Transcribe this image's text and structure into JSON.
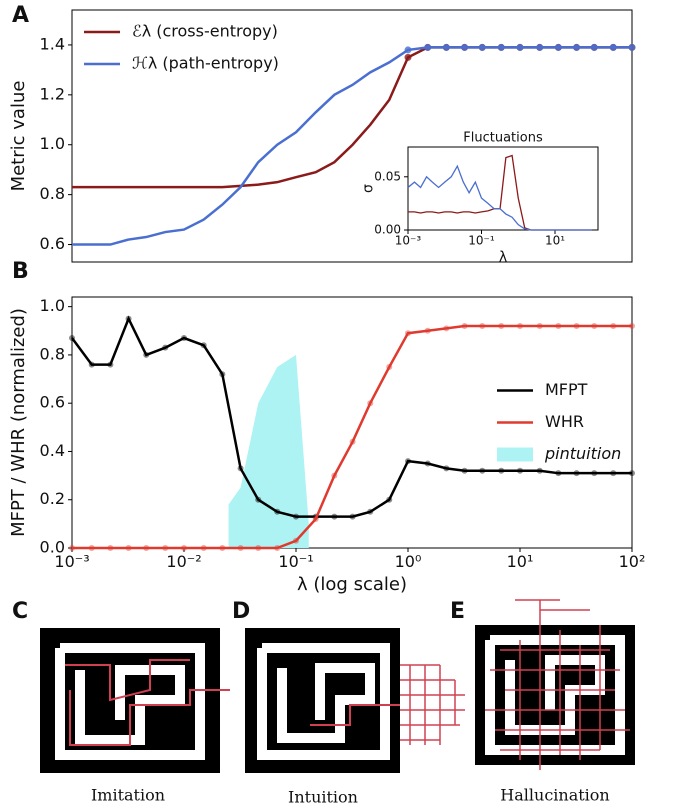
{
  "panel_labels": [
    "A",
    "B",
    "C",
    "D",
    "E"
  ],
  "captions": [
    "Imitation",
    "Intuition",
    "Hallucination"
  ],
  "chart_data": [
    {
      "type": "line",
      "xscale": "log",
      "ylabel": "Metric value",
      "legend": "upper left",
      "xlim": [
        0.001,
        100
      ],
      "ylim": [
        0.53,
        1.54
      ],
      "yticks": [
        0.6,
        0.8,
        {
          "value": 1.0,
          "label": "1.0"
        },
        1.2,
        1.4
      ],
      "x": [
        0.001,
        0.0015,
        0.0022,
        0.0032,
        0.0046,
        0.0068,
        0.01,
        0.015,
        0.022,
        0.032,
        0.046,
        0.068,
        0.1,
        0.15,
        0.22,
        0.32,
        0.46,
        0.68,
        1,
        1.5,
        2.2,
        3.2,
        4.6,
        6.8,
        10,
        15,
        22,
        32,
        46,
        68,
        100
      ],
      "series": [
        {
          "name": "ℰλ (cross-entropy)",
          "color": "#8b1a1a",
          "values": [
            0.83,
            0.83,
            0.83,
            0.83,
            0.83,
            0.83,
            0.83,
            0.83,
            0.83,
            0.835,
            0.84,
            0.85,
            0.87,
            0.89,
            0.93,
            1.0,
            1.08,
            1.18,
            1.35,
            1.39,
            1.39,
            1.39,
            1.39,
            1.39,
            1.39,
            1.39,
            1.39,
            1.39,
            1.39,
            1.39,
            1.39
          ]
        },
        {
          "name": "ℋλ (path-entropy)",
          "color": "#4a6fd0",
          "values": [
            0.6,
            0.6,
            0.6,
            0.62,
            0.63,
            0.65,
            0.66,
            0.7,
            0.76,
            0.83,
            0.93,
            1.0,
            1.05,
            1.13,
            1.2,
            1.24,
            1.29,
            1.33,
            1.38,
            1.39,
            1.39,
            1.39,
            1.39,
            1.39,
            1.39,
            1.39,
            1.39,
            1.39,
            1.39,
            1.39,
            1.39
          ]
        }
      ]
    },
    {
      "type": "line",
      "xscale": "log",
      "title": "Fluctuations",
      "xlabel": "λ",
      "ylabel": "σ",
      "xlim": [
        0.001,
        148
      ],
      "ylim": [
        0,
        0.078
      ],
      "xticks": [
        {
          "value": 0.001,
          "label": "10⁻³"
        },
        {
          "value": 0.1,
          "label": "10⁻¹"
        },
        {
          "value": 10,
          "label": "10¹"
        }
      ],
      "yticks": [
        {
          "value": 0,
          "label": "0.00"
        },
        0.05
      ],
      "x": [
        0.001,
        0.0015,
        0.0022,
        0.0032,
        0.0046,
        0.0068,
        0.01,
        0.015,
        0.022,
        0.032,
        0.046,
        0.068,
        0.1,
        0.15,
        0.22,
        0.32,
        0.46,
        0.68,
        1,
        1.5,
        2.2,
        3.2,
        4.6,
        6.8,
        10,
        15,
        22,
        32,
        46,
        68,
        100
      ],
      "series": [
        {
          "color": "#8b1a1a",
          "values": [
            0.017,
            0.017,
            0.016,
            0.017,
            0.017,
            0.016,
            0.017,
            0.017,
            0.016,
            0.017,
            0.017,
            0.016,
            0.017,
            0.018,
            0.02,
            0.02,
            0.068,
            0.07,
            0.03,
            0.002,
            0,
            0,
            0,
            0,
            0,
            0,
            0,
            0,
            0,
            0,
            0
          ]
        },
        {
          "color": "#4a6fd0",
          "values": [
            0.04,
            0.045,
            0.04,
            0.05,
            0.045,
            0.04,
            0.045,
            0.05,
            0.06,
            0.045,
            0.035,
            0.045,
            0.03,
            0.025,
            0.02,
            0.02,
            0.015,
            0.012,
            0.005,
            0.001,
            0,
            0,
            0,
            0,
            0,
            0,
            0,
            0,
            0,
            0,
            0
          ]
        }
      ]
    },
    {
      "type": "line",
      "xscale": "log",
      "xlabel": "λ (log scale)",
      "ylabel": "MFPT / WHR (normalized)",
      "legend": "center right",
      "xlim": [
        0.001,
        100
      ],
      "ylim": [
        0,
        1.04
      ],
      "xticks": [
        {
          "value": 0.001,
          "label": "10⁻³"
        },
        {
          "value": 0.01,
          "label": "10⁻²"
        },
        {
          "value": 0.1,
          "label": "10⁻¹"
        },
        {
          "value": 1,
          "label": "10⁰"
        },
        {
          "value": 10,
          "label": "10¹"
        },
        {
          "value": 100,
          "label": "10²"
        }
      ],
      "yticks": [
        {
          "value": 0,
          "label": "0.0"
        },
        0.2,
        0.4,
        0.6,
        0.8,
        {
          "value": 1,
          "label": "1.0"
        }
      ],
      "x": [
        0.001,
        0.0015,
        0.0022,
        0.0032,
        0.0046,
        0.0068,
        0.01,
        0.015,
        0.022,
        0.032,
        0.046,
        0.068,
        0.1,
        0.15,
        0.22,
        0.32,
        0.46,
        0.68,
        1,
        1.5,
        2.2,
        3.2,
        4.6,
        6.8,
        10,
        15,
        22,
        32,
        46,
        68,
        100
      ],
      "series": [
        {
          "name": "MFPT",
          "color": "#000000",
          "values": [
            0.87,
            0.76,
            0.76,
            0.95,
            0.8,
            0.83,
            0.87,
            0.84,
            0.72,
            0.33,
            0.2,
            0.15,
            0.13,
            0.13,
            0.13,
            0.13,
            0.15,
            0.2,
            0.36,
            0.35,
            0.33,
            0.32,
            0.32,
            0.32,
            0.32,
            0.32,
            0.31,
            0.31,
            0.31,
            0.31,
            0.31
          ]
        },
        {
          "name": "WHR",
          "color": "#e03a2f",
          "values": [
            0,
            0,
            0,
            0,
            0,
            0,
            0,
            0,
            0,
            0,
            0,
            0,
            0.03,
            0.12,
            0.3,
            0.44,
            0.6,
            0.75,
            0.89,
            0.9,
            0.91,
            0.92,
            0.92,
            0.92,
            0.92,
            0.92,
            0.92,
            0.92,
            0.92,
            0.92,
            0.92
          ]
        },
        {
          "name": "pintuition",
          "color": "#aef3f3",
          "kind": "area",
          "x": [
            0.025,
            0.032,
            0.046,
            0.068,
            0.1,
            0.13
          ],
          "lower": [
            0,
            0,
            0,
            0,
            0,
            0
          ],
          "upper": [
            0.18,
            0.25,
            0.6,
            0.75,
            0.8,
            0.1
          ]
        }
      ]
    }
  ]
}
